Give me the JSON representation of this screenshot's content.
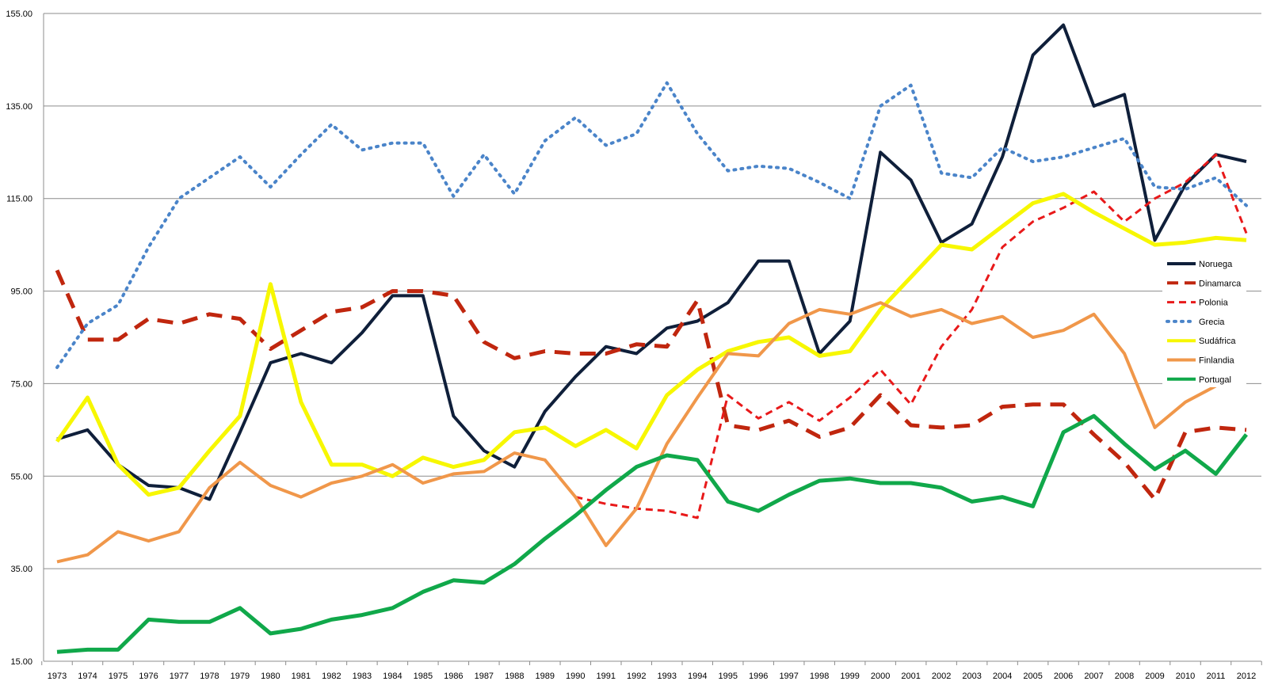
{
  "chart_data": {
    "type": "line",
    "title": "",
    "xlabel": "",
    "ylabel": "",
    "ylim": [
      15,
      155
    ],
    "yticks": [
      "155.00",
      "135.00",
      "115.00",
      "95.00",
      "75.00",
      "55.00",
      "35.00",
      "15.00"
    ],
    "ytick_values": [
      155,
      135,
      115,
      95,
      75,
      55,
      35,
      15
    ],
    "grid": "horizontal",
    "legend_placement": "right",
    "categories": [
      "1973",
      "1974",
      "1975",
      "1976",
      "1977",
      "1978",
      "1979",
      "1980",
      "1981",
      "1982",
      "1983",
      "1984",
      "1985",
      "1986",
      "1987",
      "1988",
      "1989",
      "1990",
      "1991",
      "1992",
      "1993",
      "1994",
      "1995",
      "1996",
      "1997",
      "1998",
      "1999",
      "2000",
      "2001",
      "2002",
      "2003",
      "2004",
      "2005",
      "2006",
      "2007",
      "2008",
      "2009",
      "2010",
      "2011",
      "2012"
    ],
    "series": [
      {
        "name": "Noruega",
        "color": "#0f1f3a",
        "style": "solid",
        "width": 4,
        "values": [
          63.0,
          65.0,
          57.5,
          53.0,
          52.5,
          50.0,
          64.5,
          79.5,
          81.5,
          79.5,
          86.0,
          94.0,
          94.0,
          68.0,
          60.5,
          57.0,
          69.0,
          76.5,
          83.0,
          81.5,
          87.0,
          88.5,
          92.5,
          101.5,
          101.5,
          81.5,
          88.5,
          125.0,
          119.0,
          105.5,
          109.5,
          124.0,
          146.0,
          152.5,
          135.0,
          137.5,
          106.0,
          118.0,
          124.5,
          123.0
        ]
      },
      {
        "name": "Dinamarca",
        "color": "#c0260e",
        "style": "longdash",
        "width": 5,
        "values": [
          99.5,
          84.5,
          84.5,
          89.0,
          88.0,
          90.0,
          89.0,
          82.5,
          86.5,
          90.5,
          91.5,
          95.0,
          95.0,
          94.0,
          84.0,
          80.5,
          82.0,
          81.5,
          81.5,
          83.5,
          83.0,
          93.0,
          66.0,
          65.0,
          67.0,
          63.5,
          65.5,
          72.5,
          66.0,
          65.5,
          66.0,
          70.0,
          70.5,
          70.5,
          64.0,
          58.0,
          50.0,
          64.5,
          65.5,
          65.0
        ]
      },
      {
        "name": "Polonia",
        "color": "#e8191a",
        "style": "shortdash",
        "width": 3,
        "values": [
          null,
          null,
          null,
          null,
          null,
          null,
          null,
          null,
          null,
          null,
          null,
          null,
          null,
          null,
          null,
          null,
          null,
          50.5,
          49.0,
          48.0,
          47.5,
          46.0,
          72.5,
          67.5,
          71.0,
          67.0,
          72.0,
          78.0,
          70.5,
          83.0,
          91.0,
          104.5,
          110.0,
          113.0,
          116.5,
          110.0,
          115.0,
          118.5,
          124.5,
          107.5
        ]
      },
      {
        "name": "Grecia",
        "color": "#4a84c9",
        "style": "dotted",
        "width": 4,
        "values": [
          78.5,
          88.0,
          92.0,
          104.5,
          115.0,
          119.5,
          124.0,
          117.5,
          124.5,
          131.0,
          125.5,
          127.0,
          127.0,
          115.5,
          124.5,
          116.0,
          127.5,
          132.5,
          126.5,
          129.0,
          140.0,
          129.0,
          121.0,
          122.0,
          121.5,
          118.5,
          115.0,
          135.0,
          139.5,
          120.5,
          119.5,
          126.0,
          123.0,
          124.0,
          126.0,
          128.0,
          117.5,
          117.0,
          119.5,
          113.5
        ]
      },
      {
        "name": "Sudáfrica",
        "color": "#f7f700",
        "style": "solid",
        "width": 5,
        "values": [
          62.5,
          72.0,
          57.5,
          51.0,
          52.5,
          60.5,
          68.0,
          96.5,
          71.0,
          57.5,
          57.5,
          55.0,
          59.0,
          57.0,
          58.5,
          64.5,
          65.5,
          61.5,
          65.0,
          61.0,
          72.5,
          78.0,
          82.0,
          84.0,
          85.0,
          81.0,
          82.0,
          91.0,
          98.0,
          105.0,
          104.0,
          109.0,
          114.0,
          116.0,
          112.0,
          108.5,
          105.0,
          105.5,
          106.5,
          106.0
        ]
      },
      {
        "name": "Finlandia",
        "color": "#f0974a",
        "style": "solid",
        "width": 4,
        "values": [
          36.5,
          38.0,
          43.0,
          41.0,
          43.0,
          52.5,
          58.0,
          53.0,
          50.5,
          53.5,
          55.0,
          57.5,
          53.5,
          55.5,
          56.0,
          60.0,
          58.5,
          50.5,
          40.0,
          48.0,
          62.0,
          72.0,
          81.5,
          81.0,
          88.0,
          91.0,
          90.0,
          92.5,
          89.5,
          91.0,
          88.0,
          89.5,
          85.0,
          86.5,
          90.0,
          81.5,
          65.5,
          71.0,
          74.5,
          null
        ]
      },
      {
        "name": "Portugal",
        "color": "#10a84a",
        "style": "solid",
        "width": 5,
        "values": [
          17.0,
          17.5,
          17.5,
          24.0,
          23.5,
          23.5,
          26.5,
          21.0,
          22.0,
          24.0,
          25.0,
          26.5,
          30.0,
          32.5,
          32.0,
          36.0,
          41.5,
          46.5,
          52.0,
          57.0,
          59.5,
          58.5,
          49.5,
          47.5,
          51.0,
          54.0,
          54.5,
          53.5,
          53.5,
          52.5,
          49.5,
          50.5,
          48.5,
          64.5,
          68.0,
          62.0,
          56.5,
          60.5,
          55.5,
          64.0
        ]
      }
    ]
  }
}
